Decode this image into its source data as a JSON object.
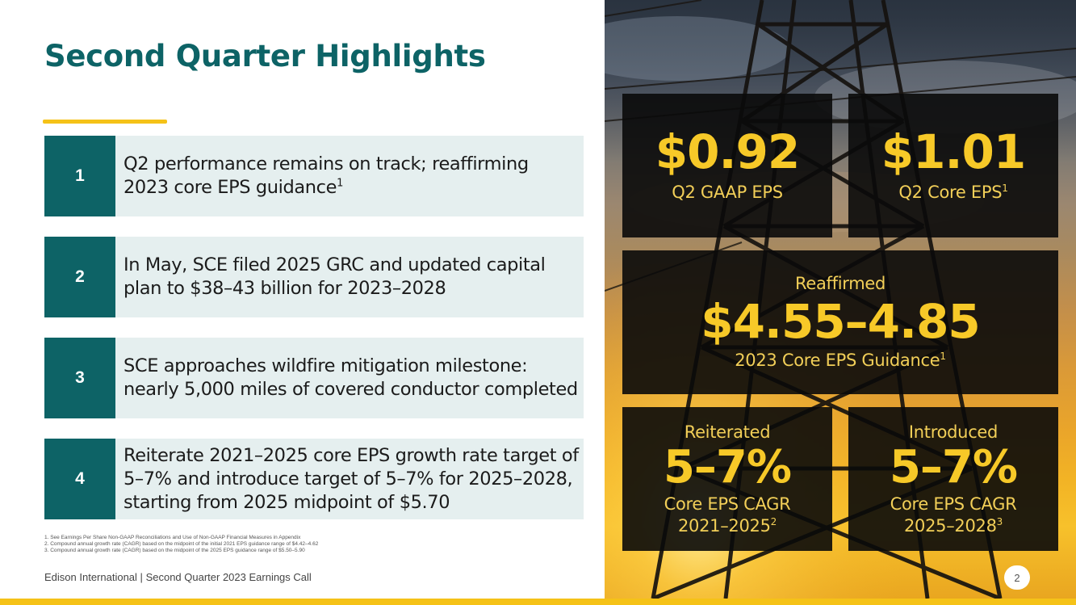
{
  "slide": {
    "title": "Second Quarter Highlights",
    "page_number": "2"
  },
  "highlights": [
    {
      "number": "1",
      "lines": [
        "Q2 performance remains on track; reaffirming",
        "2023 core EPS guidance"
      ],
      "sup": "1"
    },
    {
      "number": "2",
      "lines": [
        "In May, SCE filed 2025 GRC and updated capital",
        "plan to $38–43 billion for 2023–2028"
      ],
      "sup": ""
    },
    {
      "number": "3",
      "lines": [
        "SCE approaches wildfire mitigation milestone:",
        "nearly 5,000 miles of covered conductor completed"
      ],
      "sup": ""
    },
    {
      "number": "4",
      "lines": [
        "Reiterate 2021–2025 core EPS growth rate target of",
        "5–7% and introduce target of 5–7% for 2025–2028,",
        "starting from 2025 midpoint of $5.70"
      ],
      "sup": ""
    }
  ],
  "footnotes": [
    "1.  See Earnings Per Share Non-GAAP Reconciliations and Use of Non-GAAP Financial Measures in Appendix",
    "2.  Compound annual growth rate (CAGR) based on the midpoint of the initial 2021 EPS guidance range of $4.42–4.62",
    "3.  Compound annual growth rate (CAGR) based on the midpoint of the 2025 EPS guidance range of $5.50–5.90"
  ],
  "footer": {
    "company": "Edison International",
    "separator": "|",
    "event": "Second Quarter 2023 Earnings Call"
  },
  "metrics": {
    "gaap_eps": {
      "value": "$0.92",
      "label": "Q2 GAAP EPS"
    },
    "core_eps": {
      "value": "$1.01",
      "label": "Q2 Core EPS",
      "sup": "1"
    },
    "guidance": {
      "status": "Reaffirmed",
      "value": "$4.55–4.85",
      "label": "2023 Core EPS Guidance",
      "sup": "1"
    },
    "cagr_2021": {
      "status": "Reiterated",
      "value": "5–7%",
      "label": "Core EPS CAGR",
      "period": "2021–2025",
      "sup": "2"
    },
    "cagr_2025": {
      "status": "Introduced",
      "value": "5–7%",
      "label": "Core EPS CAGR",
      "period": "2025–2028",
      "sup": "3"
    }
  },
  "colors": {
    "teal": "#0d6366",
    "accent_yellow": "#f5c218",
    "panel_light": "#e5efef",
    "metric_gold": "#f7c928"
  }
}
